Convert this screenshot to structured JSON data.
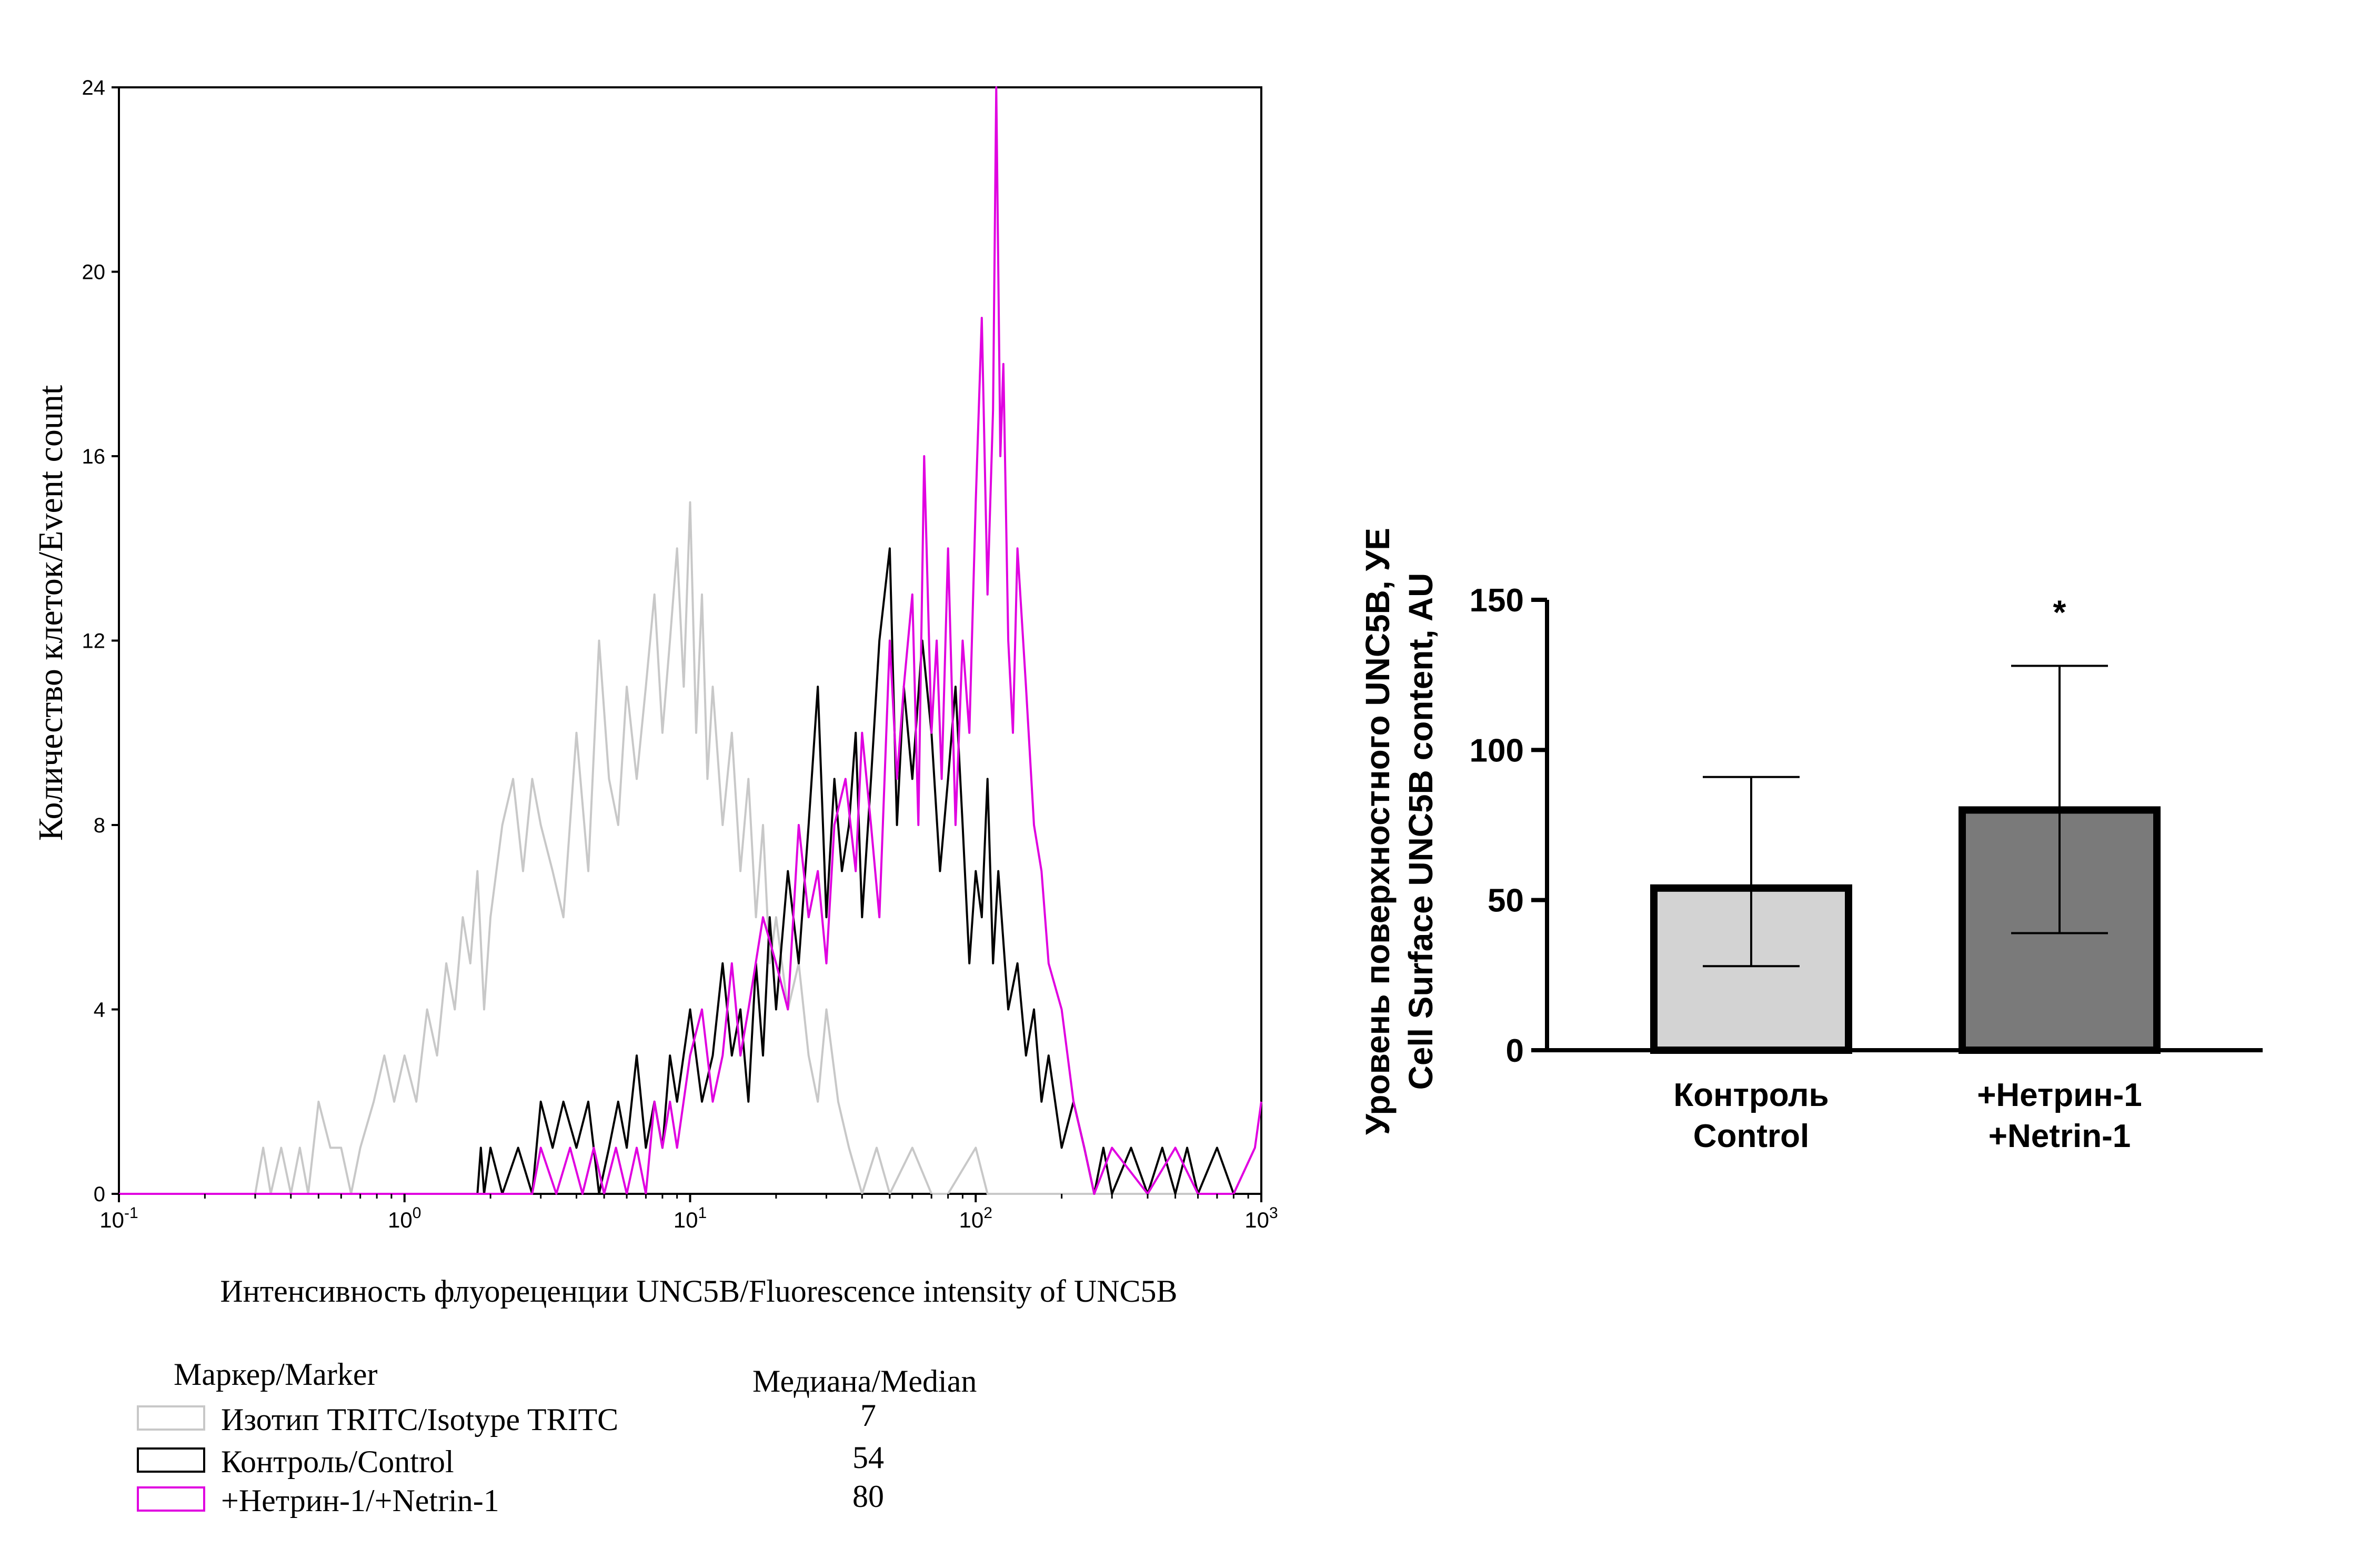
{
  "chart_data": [
    {
      "type": "line",
      "subtype": "histogram",
      "xlabel": "Интенсивность флуореценции UNC5B/Fluorescence intensity of UNC5B",
      "ylabel": "Количество клеток/Event count",
      "xscale": "log",
      "xlim": [
        0.1,
        1000
      ],
      "ylim": [
        0,
        24
      ],
      "yticks": [
        0,
        4,
        8,
        12,
        16,
        20,
        24
      ],
      "xticks": [
        {
          "base": "10",
          "exp": "-1",
          "value": 0.1
        },
        {
          "base": "10",
          "exp": "0",
          "value": 1
        },
        {
          "base": "10",
          "exp": "1",
          "value": 10
        },
        {
          "base": "10",
          "exp": "2",
          "value": 100
        },
        {
          "base": "10",
          "exp": "3",
          "value": 1000
        }
      ],
      "legend": {
        "marker_header": "Маркер/Marker",
        "median_header": "Медиана/Median",
        "entries": [
          {
            "label": "Изотип TRITC/Isotype TRITC",
            "median": "7",
            "color": "#c8c8c8"
          },
          {
            "label": "Контроль/Control",
            "median": "54",
            "color": "#000000"
          },
          {
            "label": "+Нетрин-1/+Netrin-1",
            "median": "80",
            "color": "#e000e0"
          }
        ]
      },
      "series": [
        {
          "name": "Изотип TRITC/Isotype TRITC",
          "color": "#c8c8c8",
          "x": [
            0.1,
            0.3,
            0.32,
            0.34,
            0.37,
            0.4,
            0.43,
            0.46,
            0.5,
            0.55,
            0.6,
            0.65,
            0.7,
            0.78,
            0.85,
            0.92,
            1.0,
            1.1,
            1.2,
            1.3,
            1.4,
            1.5,
            1.6,
            1.7,
            1.8,
            1.9,
            2.0,
            2.2,
            2.4,
            2.6,
            2.8,
            3.0,
            3.3,
            3.6,
            4.0,
            4.4,
            4.8,
            5.2,
            5.6,
            6.0,
            6.5,
            7.0,
            7.5,
            8.0,
            8.5,
            9.0,
            9.5,
            10.0,
            10.5,
            11.0,
            11.5,
            12.0,
            13.0,
            14.0,
            15.0,
            16.0,
            17.0,
            18.0,
            19.0,
            20.0,
            22.0,
            24.0,
            26.0,
            28.0,
            30.0,
            33.0,
            36.0,
            40.0,
            45.0,
            50.0,
            60.0,
            70.0,
            80.0,
            100.0,
            110.0,
            120.0,
            150.0,
            1000.0
          ],
          "y": [
            0,
            0,
            1,
            0,
            1,
            0,
            1,
            0,
            2,
            1,
            1,
            0,
            1,
            2,
            3,
            2,
            3,
            2,
            4,
            3,
            5,
            4,
            6,
            5,
            7,
            4,
            6,
            8,
            9,
            7,
            9,
            8,
            7,
            6,
            10,
            7,
            12,
            9,
            8,
            11,
            9,
            11,
            13,
            10,
            12,
            14,
            11,
            15,
            10,
            13,
            9,
            11,
            8,
            10,
            7,
            9,
            6,
            8,
            5,
            6,
            4,
            5,
            3,
            2,
            4,
            2,
            1,
            0,
            1,
            0,
            1,
            0,
            0,
            1,
            0,
            0,
            0,
            0
          ]
        },
        {
          "name": "Контроль/Control",
          "color": "#000000",
          "x": [
            0.1,
            1.8,
            1.85,
            1.9,
            2.0,
            2.2,
            2.5,
            2.8,
            3.0,
            3.3,
            3.6,
            4.0,
            4.4,
            4.8,
            5.2,
            5.6,
            6.0,
            6.5,
            7.0,
            7.5,
            8.0,
            8.5,
            9.0,
            10.0,
            11.0,
            12.0,
            13.0,
            14.0,
            15.0,
            16.0,
            17.0,
            18.0,
            19.0,
            20.0,
            22.0,
            24.0,
            26.0,
            28.0,
            30.0,
            32.0,
            34.0,
            36.0,
            38.0,
            40.0,
            43.0,
            46.0,
            50.0,
            53.0,
            56.0,
            60.0,
            65.0,
            70.0,
            75.0,
            80.0,
            85.0,
            90.0,
            95.0,
            100.0,
            105.0,
            110.0,
            115.0,
            120.0,
            130.0,
            140.0,
            150.0,
            160.0,
            170.0,
            180.0,
            200.0,
            220.0,
            240.0,
            260.0,
            280.0,
            300.0,
            350.0,
            400.0,
            450.0,
            500.0,
            550.0,
            600.0,
            700.0,
            800.0,
            1000.0
          ],
          "y": [
            0,
            0,
            1,
            0,
            1,
            0,
            1,
            0,
            2,
            1,
            2,
            1,
            2,
            0,
            1,
            2,
            1,
            3,
            1,
            2,
            1,
            3,
            2,
            4,
            2,
            3,
            5,
            3,
            4,
            2,
            5,
            3,
            6,
            4,
            7,
            5,
            8,
            11,
            6,
            9,
            7,
            8,
            10,
            6,
            9,
            12,
            14,
            8,
            11,
            9,
            12,
            10,
            7,
            9,
            11,
            8,
            5,
            7,
            6,
            9,
            5,
            7,
            4,
            5,
            3,
            4,
            2,
            3,
            1,
            2,
            1,
            0,
            1,
            0,
            1,
            0,
            1,
            0,
            1,
            0,
            1,
            0,
            0
          ]
        },
        {
          "name": "+Нетрин-1/+Netrin-1",
          "color": "#e000e0",
          "x": [
            0.1,
            0.4,
            0.45,
            1.0,
            1.1,
            2.0,
            2.4,
            2.8,
            3.0,
            3.4,
            3.8,
            4.2,
            4.6,
            5.0,
            5.5,
            6.0,
            6.5,
            7.0,
            7.5,
            8.0,
            8.5,
            9.0,
            10.0,
            11.0,
            12.0,
            13.0,
            14.0,
            15.0,
            16.0,
            18.0,
            20.0,
            22.0,
            24.0,
            26.0,
            28.0,
            30.0,
            32.0,
            35.0,
            38.0,
            40.0,
            43.0,
            46.0,
            50.0,
            53.0,
            56.0,
            60.0,
            63.0,
            66.0,
            70.0,
            73.0,
            76.0,
            80.0,
            85.0,
            90.0,
            95.0,
            100.0,
            105.0,
            110.0,
            115.0,
            118.0,
            120.0,
            122.0,
            125.0,
            130.0,
            135.0,
            140.0,
            150.0,
            160.0,
            170.0,
            180.0,
            200.0,
            220.0,
            240.0,
            260.0,
            300.0,
            400.0,
            500.0,
            600.0,
            800.0,
            950.0,
            1000.0
          ],
          "y": [
            0,
            0,
            0,
            0,
            0,
            0,
            0,
            0,
            1,
            0,
            1,
            0,
            1,
            0,
            1,
            0,
            1,
            0,
            2,
            1,
            2,
            1,
            3,
            4,
            2,
            3,
            5,
            3,
            4,
            6,
            5,
            4,
            8,
            6,
            7,
            5,
            8,
            9,
            7,
            10,
            8,
            6,
            12,
            9,
            11,
            13,
            8,
            16,
            10,
            12,
            9,
            14,
            8,
            12,
            10,
            15,
            19,
            13,
            17,
            24,
            20,
            16,
            18,
            12,
            10,
            14,
            11,
            8,
            7,
            5,
            4,
            2,
            1,
            0,
            1,
            0,
            1,
            0,
            0,
            1,
            2
          ]
        }
      ]
    },
    {
      "type": "bar",
      "ylabel_line1": "Уровень поверхностного UNC5B, УЕ",
      "ylabel_line2": "Cell Surface UNC5B content, AU",
      "ylim": [
        0,
        150
      ],
      "yticks": [
        0,
        50,
        100,
        150
      ],
      "categories": [
        {
          "line1": "Контроль",
          "line2": "Control"
        },
        {
          "line1": "+Нетрин-1",
          "line2": "+Netrin-1"
        }
      ],
      "values": [
        54,
        80
      ],
      "error_upper": [
        91,
        128
      ],
      "error_lower": [
        28,
        39
      ],
      "colors": [
        "#d3d3d3",
        "#7a7a7a"
      ],
      "annotations": [
        "",
        "*"
      ]
    }
  ]
}
